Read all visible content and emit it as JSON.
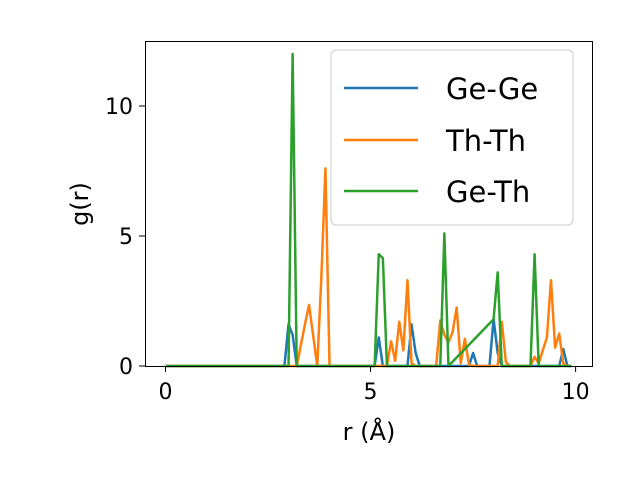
{
  "chart_data": {
    "type": "line",
    "title": "",
    "xlabel": "r (Å)",
    "ylabel": "g(r)",
    "xlim": [
      -0.5,
      10.4
    ],
    "ylim": [
      0,
      12.5
    ],
    "xticks": [
      0,
      5,
      10
    ],
    "yticks": [
      0,
      5,
      10
    ],
    "grid": false,
    "legend_position": "top-right",
    "series": [
      {
        "name": "Ge-Ge",
        "color": "#1f77b4",
        "x": [
          0,
          2.9,
          3.0,
          3.1,
          3.2,
          5.1,
          5.2,
          5.3,
          5.9,
          6.0,
          6.1,
          6.2,
          7.4,
          7.5,
          7.6,
          7.9,
          8.0,
          8.1,
          8.2,
          9.6,
          9.7,
          9.8,
          9.9
        ],
        "values": [
          0,
          0,
          1.6,
          1.2,
          0,
          0,
          1.1,
          0,
          0,
          1.6,
          0.5,
          0,
          0,
          0.5,
          0,
          0,
          1.8,
          0.5,
          0,
          0,
          0.65,
          0,
          0
        ]
      },
      {
        "name": "Th-Th",
        "color": "#ff7f0e",
        "x": [
          0,
          3.2,
          3.4,
          3.5,
          3.7,
          3.8,
          3.9,
          4.0,
          5.4,
          5.5,
          5.6,
          5.7,
          5.8,
          5.9,
          6.0,
          6.1,
          6.6,
          6.7,
          6.8,
          6.9,
          7.0,
          7.1,
          7.2,
          7.3,
          7.4,
          7.5,
          8.1,
          8.2,
          8.3,
          8.4,
          8.9,
          9.0,
          9.1,
          9.3,
          9.4,
          9.5,
          9.6,
          9.7,
          9.8
        ],
        "values": [
          0,
          0,
          1.6,
          2.35,
          0,
          3.4,
          7.6,
          0,
          0,
          0.95,
          0.2,
          1.7,
          0.6,
          3.3,
          0.1,
          0,
          0,
          1.75,
          1.2,
          0.9,
          1.3,
          2.25,
          0.1,
          1.05,
          0.05,
          0,
          0,
          1.7,
          0.15,
          0,
          0,
          0.35,
          0.1,
          1.1,
          3.3,
          0.7,
          1.25,
          0.1,
          0
        ]
      },
      {
        "name": "Ge-Th",
        "color": "#2ca02c",
        "x": [
          0,
          3.0,
          3.1,
          3.2,
          5.1,
          5.2,
          5.3,
          5.4,
          6.7,
          6.8,
          6.9,
          8.0,
          8.1,
          8.2,
          8.9,
          9.0,
          9.1,
          9.9
        ],
        "values": [
          0,
          0,
          12.0,
          0,
          0,
          4.3,
          4.15,
          0,
          0,
          5.1,
          0,
          1.8,
          3.6,
          0,
          0,
          4.3,
          0,
          0
        ]
      }
    ]
  }
}
